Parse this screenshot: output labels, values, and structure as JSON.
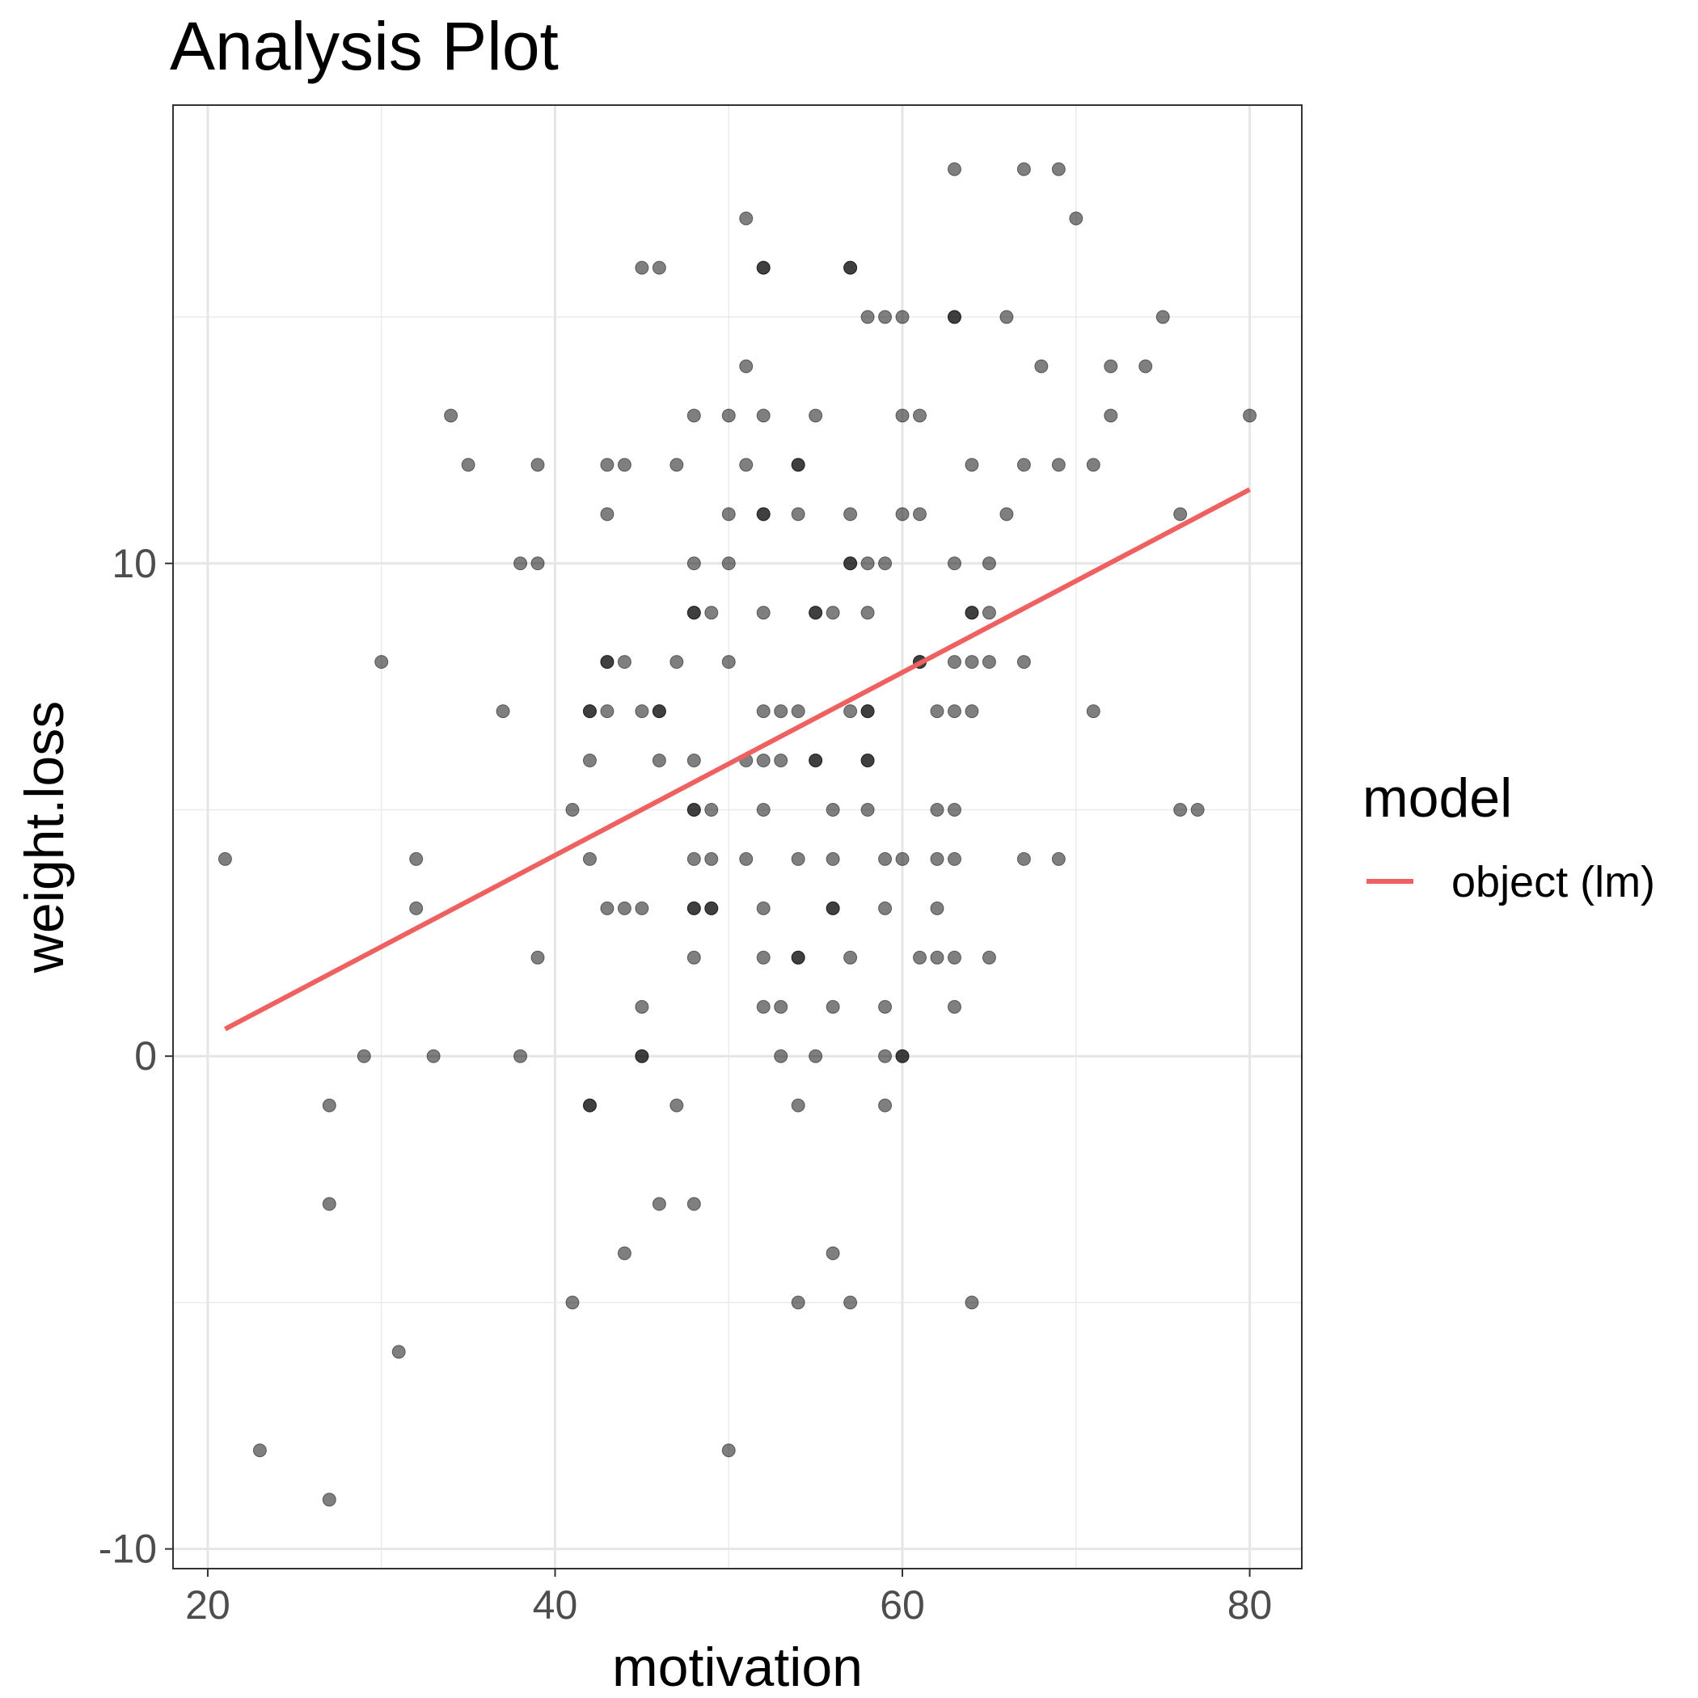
{
  "chart_data": {
    "type": "scatter",
    "title": "Analysis Plot",
    "xlabel": "motivation",
    "ylabel": "weight.loss",
    "xlim": [
      18,
      83
    ],
    "ylim": [
      -10.4,
      19.3
    ],
    "x_ticks": [
      20,
      40,
      60,
      80
    ],
    "y_ticks": [
      -10,
      0,
      10
    ],
    "x_tick_labels": [
      "20",
      "40",
      "60",
      "80"
    ],
    "y_tick_labels": [
      "-10",
      "0",
      "10"
    ],
    "x_minor_ticks": [
      30,
      50,
      70
    ],
    "y_minor_ticks": [
      -5,
      5,
      15
    ],
    "grid": true,
    "legend": {
      "title": "model",
      "position": "right",
      "entries": [
        {
          "label": "object (lm)",
          "color": "#ef6060"
        }
      ]
    },
    "point_color": "#000000",
    "point_opacity": 0.5,
    "fit_line": {
      "x": [
        21,
        80
      ],
      "y": [
        0.55,
        11.5
      ],
      "color": "#ef6060"
    },
    "points": [
      [
        21,
        4
      ],
      [
        23,
        -8
      ],
      [
        27,
        -1
      ],
      [
        27,
        -3
      ],
      [
        27,
        -9
      ],
      [
        29,
        0
      ],
      [
        30,
        8
      ],
      [
        31,
        -6
      ],
      [
        32,
        4
      ],
      [
        32,
        3
      ],
      [
        33,
        0
      ],
      [
        34,
        13
      ],
      [
        35,
        12
      ],
      [
        37,
        7
      ],
      [
        38,
        10
      ],
      [
        38,
        0
      ],
      [
        39,
        12
      ],
      [
        39,
        10
      ],
      [
        39,
        2
      ],
      [
        41,
        5
      ],
      [
        41,
        -5
      ],
      [
        42,
        7
      ],
      [
        42,
        7
      ],
      [
        42,
        6
      ],
      [
        42,
        4
      ],
      [
        42,
        -1
      ],
      [
        42,
        -1
      ],
      [
        43,
        12
      ],
      [
        43,
        11
      ],
      [
        43,
        8
      ],
      [
        43,
        8
      ],
      [
        43,
        7
      ],
      [
        43,
        3
      ],
      [
        44,
        12
      ],
      [
        44,
        8
      ],
      [
        44,
        3
      ],
      [
        44,
        -4
      ],
      [
        45,
        16
      ],
      [
        45,
        7
      ],
      [
        45,
        3
      ],
      [
        45,
        1
      ],
      [
        45,
        0
      ],
      [
        45,
        0
      ],
      [
        46,
        16
      ],
      [
        46,
        7
      ],
      [
        46,
        7
      ],
      [
        46,
        6
      ],
      [
        46,
        -3
      ],
      [
        47,
        12
      ],
      [
        47,
        8
      ],
      [
        47,
        -1
      ],
      [
        48,
        13
      ],
      [
        48,
        10
      ],
      [
        48,
        9
      ],
      [
        48,
        9
      ],
      [
        48,
        6
      ],
      [
        48,
        5
      ],
      [
        48,
        5
      ],
      [
        48,
        4
      ],
      [
        48,
        3
      ],
      [
        48,
        3
      ],
      [
        48,
        2
      ],
      [
        48,
        -3
      ],
      [
        49,
        9
      ],
      [
        49,
        5
      ],
      [
        49,
        4
      ],
      [
        49,
        3
      ],
      [
        49,
        3
      ],
      [
        50,
        13
      ],
      [
        50,
        11
      ],
      [
        50,
        10
      ],
      [
        50,
        8
      ],
      [
        50,
        -8
      ],
      [
        51,
        17
      ],
      [
        51,
        14
      ],
      [
        51,
        12
      ],
      [
        51,
        6
      ],
      [
        51,
        4
      ],
      [
        52,
        16
      ],
      [
        52,
        16
      ],
      [
        52,
        13
      ],
      [
        52,
        11
      ],
      [
        52,
        11
      ],
      [
        52,
        9
      ],
      [
        52,
        7
      ],
      [
        52,
        6
      ],
      [
        52,
        5
      ],
      [
        52,
        3
      ],
      [
        52,
        2
      ],
      [
        52,
        1
      ],
      [
        53,
        7
      ],
      [
        53,
        6
      ],
      [
        53,
        1
      ],
      [
        53,
        0
      ],
      [
        54,
        12
      ],
      [
        54,
        12
      ],
      [
        54,
        11
      ],
      [
        54,
        7
      ],
      [
        54,
        4
      ],
      [
        54,
        2
      ],
      [
        54,
        2
      ],
      [
        54,
        -1
      ],
      [
        54,
        -5
      ],
      [
        55,
        13
      ],
      [
        55,
        9
      ],
      [
        55,
        9
      ],
      [
        55,
        6
      ],
      [
        55,
        6
      ],
      [
        55,
        0
      ],
      [
        56,
        9
      ],
      [
        56,
        5
      ],
      [
        56,
        4
      ],
      [
        56,
        3
      ],
      [
        56,
        3
      ],
      [
        56,
        1
      ],
      [
        56,
        -4
      ],
      [
        57,
        16
      ],
      [
        57,
        16
      ],
      [
        57,
        11
      ],
      [
        57,
        10
      ],
      [
        57,
        10
      ],
      [
        57,
        7
      ],
      [
        57,
        2
      ],
      [
        57,
        -5
      ],
      [
        58,
        15
      ],
      [
        58,
        10
      ],
      [
        58,
        9
      ],
      [
        58,
        7
      ],
      [
        58,
        7
      ],
      [
        58,
        6
      ],
      [
        58,
        6
      ],
      [
        58,
        5
      ],
      [
        59,
        15
      ],
      [
        59,
        10
      ],
      [
        59,
        4
      ],
      [
        59,
        3
      ],
      [
        59,
        1
      ],
      [
        59,
        0
      ],
      [
        59,
        -1
      ],
      [
        60,
        15
      ],
      [
        60,
        13
      ],
      [
        60,
        11
      ],
      [
        60,
        4
      ],
      [
        60,
        0
      ],
      [
        60,
        0
      ],
      [
        61,
        13
      ],
      [
        61,
        11
      ],
      [
        61,
        8
      ],
      [
        61,
        8
      ],
      [
        61,
        2
      ],
      [
        62,
        7
      ],
      [
        62,
        5
      ],
      [
        62,
        4
      ],
      [
        62,
        3
      ],
      [
        62,
        2
      ],
      [
        63,
        18
      ],
      [
        63,
        15
      ],
      [
        63,
        15
      ],
      [
        63,
        10
      ],
      [
        63,
        8
      ],
      [
        63,
        7
      ],
      [
        63,
        5
      ],
      [
        63,
        4
      ],
      [
        63,
        2
      ],
      [
        63,
        1
      ],
      [
        64,
        12
      ],
      [
        64,
        9
      ],
      [
        64,
        9
      ],
      [
        64,
        8
      ],
      [
        64,
        7
      ],
      [
        64,
        -5
      ],
      [
        65,
        10
      ],
      [
        65,
        9
      ],
      [
        65,
        8
      ],
      [
        65,
        2
      ],
      [
        66,
        15
      ],
      [
        66,
        11
      ],
      [
        67,
        18
      ],
      [
        67,
        12
      ],
      [
        67,
        8
      ],
      [
        67,
        4
      ],
      [
        68,
        14
      ],
      [
        69,
        18
      ],
      [
        69,
        12
      ],
      [
        69,
        4
      ],
      [
        70,
        17
      ],
      [
        71,
        12
      ],
      [
        71,
        7
      ],
      [
        72,
        14
      ],
      [
        72,
        13
      ],
      [
        74,
        14
      ],
      [
        75,
        15
      ],
      [
        76,
        11
      ],
      [
        76,
        5
      ],
      [
        77,
        5
      ],
      [
        80,
        13
      ]
    ]
  }
}
